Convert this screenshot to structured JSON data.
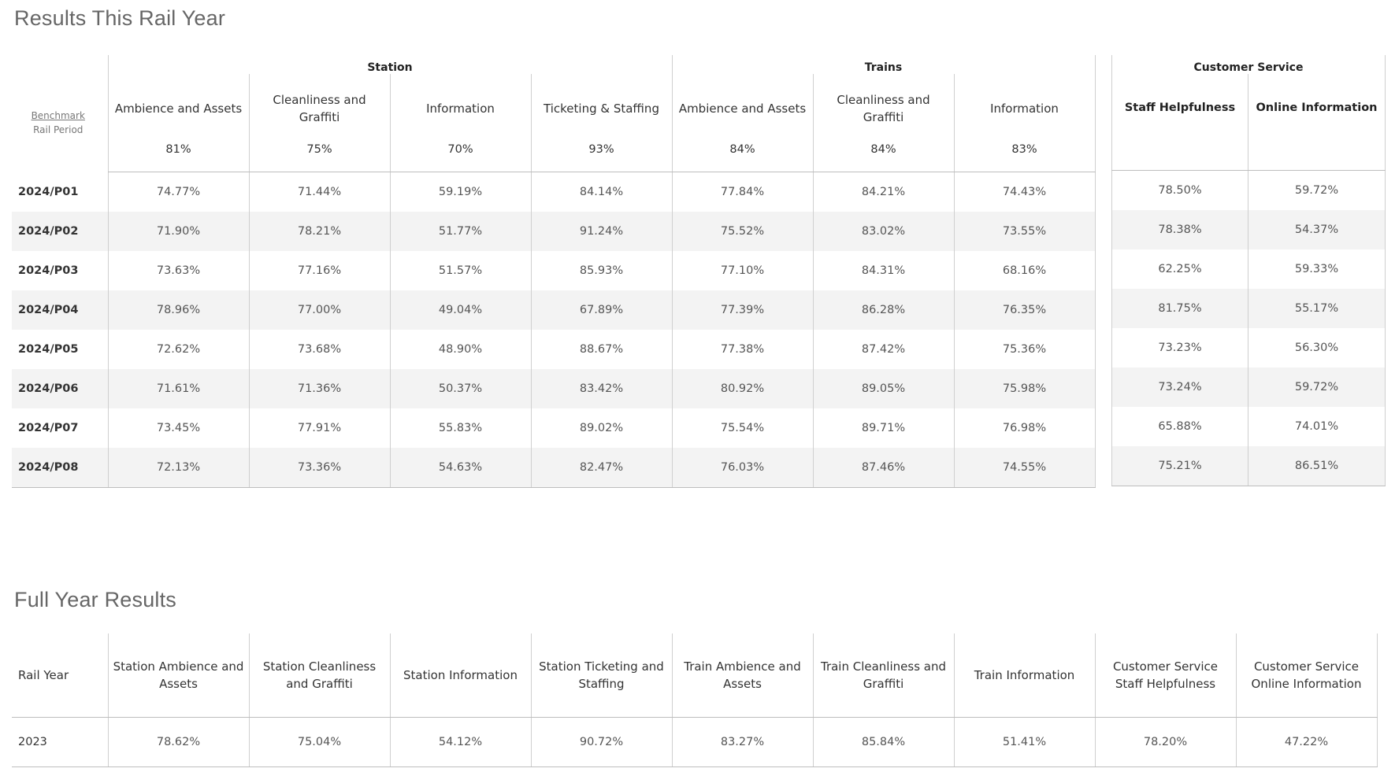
{
  "titles": {
    "this_year": "Results This Rail Year",
    "full_year": "Full Year Results"
  },
  "main_table": {
    "legend": {
      "benchmark": "Benchmark",
      "rail_period": "Rail Period"
    },
    "groups": {
      "station": "Station",
      "trains": "Trains",
      "customer_service": "Customer Service"
    },
    "columns": [
      {
        "label": "Ambience and Assets",
        "benchmark": "81%"
      },
      {
        "label": "Cleanliness and Graffiti",
        "benchmark": "75%"
      },
      {
        "label": "Information",
        "benchmark": "70%"
      },
      {
        "label": "Ticketing & Staffing",
        "benchmark": "93%"
      },
      {
        "label": "Ambience and Assets",
        "benchmark": "84%"
      },
      {
        "label": "Cleanliness and Graffiti",
        "benchmark": "84%"
      },
      {
        "label": "Information",
        "benchmark": "83%"
      }
    ],
    "cs_columns": [
      {
        "label": "Staff Helpfulness"
      },
      {
        "label": "Online Information"
      }
    ],
    "rows": [
      {
        "period": "2024/P01",
        "values": [
          "74.77%",
          "71.44%",
          "59.19%",
          "84.14%",
          "77.84%",
          "84.21%",
          "74.43%"
        ],
        "cs": [
          "78.50%",
          "59.72%"
        ]
      },
      {
        "period": "2024/P02",
        "values": [
          "71.90%",
          "78.21%",
          "51.77%",
          "91.24%",
          "75.52%",
          "83.02%",
          "73.55%"
        ],
        "cs": [
          "78.38%",
          "54.37%"
        ]
      },
      {
        "period": "2024/P03",
        "values": [
          "73.63%",
          "77.16%",
          "51.57%",
          "85.93%",
          "77.10%",
          "84.31%",
          "68.16%"
        ],
        "cs": [
          "62.25%",
          "59.33%"
        ]
      },
      {
        "period": "2024/P04",
        "values": [
          "78.96%",
          "77.00%",
          "49.04%",
          "67.89%",
          "77.39%",
          "86.28%",
          "76.35%"
        ],
        "cs": [
          "81.75%",
          "55.17%"
        ]
      },
      {
        "period": "2024/P05",
        "values": [
          "72.62%",
          "73.68%",
          "48.90%",
          "88.67%",
          "77.38%",
          "87.42%",
          "75.36%"
        ],
        "cs": [
          "73.23%",
          "56.30%"
        ]
      },
      {
        "period": "2024/P06",
        "values": [
          "71.61%",
          "71.36%",
          "50.37%",
          "83.42%",
          "80.92%",
          "89.05%",
          "75.98%"
        ],
        "cs": [
          "73.24%",
          "59.72%"
        ]
      },
      {
        "period": "2024/P07",
        "values": [
          "73.45%",
          "77.91%",
          "55.83%",
          "89.02%",
          "75.54%",
          "89.71%",
          "76.98%"
        ],
        "cs": [
          "65.88%",
          "74.01%"
        ]
      },
      {
        "period": "2024/P08",
        "values": [
          "72.13%",
          "73.36%",
          "54.63%",
          "82.47%",
          "76.03%",
          "87.46%",
          "74.55%"
        ],
        "cs": [
          "75.21%",
          "86.51%"
        ]
      }
    ]
  },
  "full_year": {
    "columns": [
      "Rail Year",
      "Station Ambience and Assets",
      "Station Cleanliness and Graffiti",
      "Station Information",
      "Station Ticketing and Staffing",
      "Train Ambience and Assets",
      "Train Cleanliness and Graffiti",
      "Train Information",
      "Customer Service Staff Helpfulness",
      "Customer Service Online Information"
    ],
    "rows": [
      {
        "year": "2023",
        "values": [
          "78.62%",
          "75.04%",
          "54.12%",
          "90.72%",
          "83.27%",
          "85.84%",
          "51.41%",
          "78.20%",
          "47.22%"
        ]
      }
    ]
  }
}
